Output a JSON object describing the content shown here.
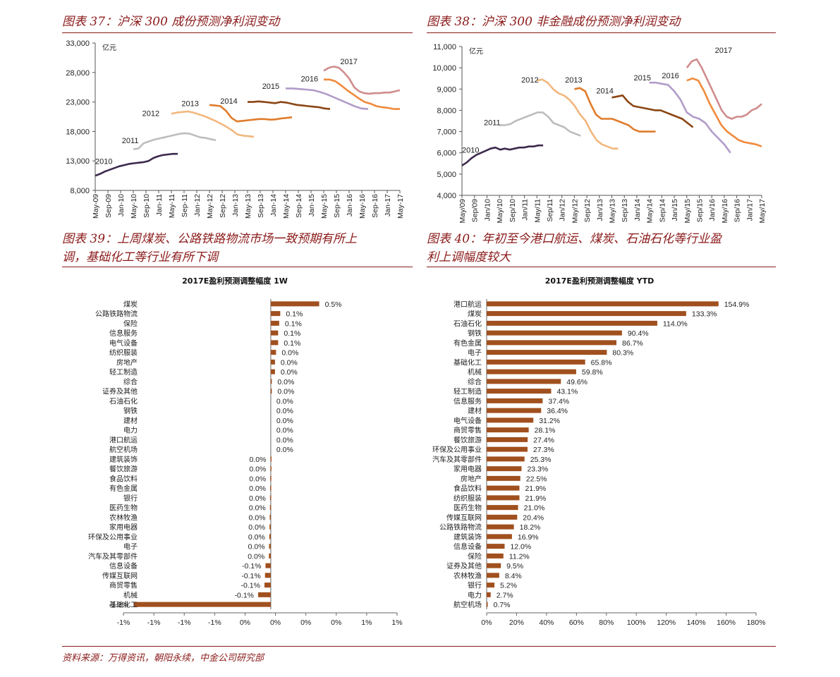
{
  "titles": {
    "c37": "图表 37：沪深 300 成份预测净利润变动",
    "c38": "图表 38：沪深 300 非金融成份预测净利润变动",
    "c39_l1": "图表 39：上周煤炭、公路铁路物流市场一致预期有所上",
    "c39_l2": "调，基础化工等行业有所下调",
    "c40_l1": "图表 40：年初至今港口航运、煤炭、石油石化等行业盈",
    "c40_l2": "利上调幅度较大"
  },
  "source": "资料来源：万得资讯，朝阳永续，中金公司研究部",
  "chart_data": [
    {
      "id": "c37",
      "type": "line",
      "yunit": "亿元",
      "ylim": [
        8000,
        33000
      ],
      "yticks": [
        "8,000",
        "13,000",
        "18,000",
        "23,000",
        "28,000",
        "33,000"
      ],
      "xticks": [
        "May-09",
        "Sep-09",
        "Jan-10",
        "May-10",
        "Sep-10",
        "Jan-11",
        "May-11",
        "Sep-11",
        "Jan-12",
        "May-12",
        "Sep-12",
        "Jan-13",
        "May-13",
        "Sep-13",
        "Jan-14",
        "May-14",
        "Sep-14",
        "Jan-15",
        "May-15",
        "Sep-15",
        "Jan-16",
        "May-16",
        "Sep-16",
        "Jan-17",
        "May-17"
      ],
      "series": [
        {
          "name": "2010",
          "color": "#3c2a4d",
          "start": 0,
          "pts": [
            10500,
            10800,
            11200,
            11500,
            11800,
            12100,
            12300,
            12500,
            12600,
            12700,
            12800,
            13000,
            13500,
            13800,
            14000,
            14100,
            14200,
            14200
          ]
        },
        {
          "name": "2011",
          "color": "#bdbdbd",
          "start": 6,
          "pts": [
            15000,
            15100,
            16000,
            16300,
            16600,
            16800,
            17000,
            17200,
            17400,
            17600,
            17700,
            17600,
            17300,
            17000,
            16900,
            16700,
            16500
          ]
        },
        {
          "name": "2012",
          "color": "#f2b77e",
          "start": 12,
          "pts": [
            21000,
            21200,
            21300,
            21400,
            21200,
            20900,
            20600,
            20200,
            19800,
            19300,
            18800,
            18200,
            17500,
            17300,
            17200,
            17100
          ]
        },
        {
          "name": "2013",
          "color": "#e07b2a",
          "start": 18,
          "pts": [
            22500,
            22400,
            22300,
            21500,
            20300,
            19700,
            19800,
            19900,
            20000,
            20100,
            20100,
            20000,
            20050,
            20200,
            20300,
            20400
          ]
        },
        {
          "name": "2014",
          "color": "#8b4513",
          "start": 24,
          "pts": [
            23000,
            23000,
            23100,
            23000,
            22900,
            22800,
            23000,
            22900,
            22700,
            22500,
            22400,
            22300,
            22200,
            22100,
            21900,
            21800
          ]
        },
        {
          "name": "2015",
          "color": "#b19cc9",
          "start": 30,
          "pts": [
            25300,
            25300,
            25200,
            25100,
            25000,
            24700,
            24300,
            23800,
            23300,
            22800,
            22300,
            21900,
            21800
          ]
        },
        {
          "name": "2016",
          "color": "#f08a3c",
          "start": 36,
          "pts": [
            26800,
            26800,
            26500,
            25800,
            25000,
            24300,
            23600,
            23000,
            22700,
            22300,
            22100,
            22000,
            21800,
            21800
          ]
        },
        {
          "name": "2017",
          "color": "#d08c8c",
          "start": 36,
          "pts": [
            28300,
            28800,
            29000,
            28800,
            28000,
            27000,
            25500,
            24800,
            24500,
            24400,
            24500,
            24500,
            24600,
            24600,
            24800,
            25000
          ]
        }
      ],
      "labels": [
        {
          "text": "2010",
          "x": 0,
          "y": 12500
        },
        {
          "text": "2011",
          "x": 4.2,
          "y": 16000
        },
        {
          "text": "2012",
          "x": 7.4,
          "y": 20600
        },
        {
          "text": "2013",
          "x": 13.6,
          "y": 22300
        },
        {
          "text": "2014",
          "x": 19.7,
          "y": 22700
        },
        {
          "text": "2015",
          "x": 26.3,
          "y": 25200
        },
        {
          "text": "2016",
          "x": 32.4,
          "y": 26500
        },
        {
          "text": "2017",
          "x": 38.6,
          "y": 29400
        }
      ],
      "npts": 49
    },
    {
      "id": "c38",
      "type": "line",
      "yunit": "亿元",
      "ylim": [
        4000,
        11000
      ],
      "yticks": [
        "4,000",
        "5,000",
        "6,000",
        "7,000",
        "8,000",
        "9,000",
        "10,000",
        "11,000"
      ],
      "xticks": [
        "May/09",
        "Sep/09",
        "Jan/10",
        "May/10",
        "Sep/10",
        "Jan/11",
        "May/11",
        "Sep/11",
        "Jan/12",
        "May/12",
        "Sep/12",
        "Jan/13",
        "May/13",
        "Sep/13",
        "Jan/14",
        "May/14",
        "Sep/14",
        "Jan/15",
        "May/15",
        "Sep/15",
        "Jan/16",
        "May/16",
        "Sep/16",
        "Jan/17",
        "May/17"
      ],
      "series": [
        {
          "name": "2010",
          "color": "#3c2a4d",
          "start": 0,
          "pts": [
            5400,
            5550,
            5750,
            5900,
            6000,
            6100,
            6200,
            6250,
            6150,
            6200,
            6150,
            6200,
            6250,
            6250,
            6300,
            6300,
            6350,
            6350
          ]
        },
        {
          "name": "2011",
          "color": "#bdbdbd",
          "start": 6,
          "pts": [
            7300,
            7300,
            7350,
            7500,
            7600,
            7700,
            7800,
            7900,
            7900,
            7700,
            7400,
            7300,
            7200,
            7000,
            6900,
            6800
          ]
        },
        {
          "name": "2012",
          "color": "#f2b77e",
          "start": 12,
          "pts": [
            9400,
            9450,
            9300,
            9000,
            8800,
            8700,
            8500,
            8200,
            7800,
            7500,
            7000,
            6600,
            6400,
            6300,
            6200,
            6200
          ]
        },
        {
          "name": "2013",
          "color": "#e07b2a",
          "start": 18,
          "pts": [
            9000,
            9050,
            8900,
            8300,
            7800,
            7600,
            7600,
            7600,
            7500,
            7400,
            7300,
            7100,
            7000,
            7000,
            7000,
            7000
          ]
        },
        {
          "name": "2014",
          "color": "#8b4513",
          "start": 24,
          "pts": [
            8600,
            8650,
            8700,
            8400,
            8200,
            8150,
            8100,
            8050,
            8000,
            8000,
            7900,
            7800,
            7700,
            7600,
            7400,
            7200
          ]
        },
        {
          "name": "2015",
          "color": "#b19cc9",
          "start": 30,
          "pts": [
            9300,
            9300,
            9250,
            9200,
            8900,
            8500,
            7900,
            7700,
            7600,
            7400,
            7000,
            6700,
            6400,
            6000
          ]
        },
        {
          "name": "2016",
          "color": "#f08a3c",
          "start": 36,
          "pts": [
            9400,
            9500,
            9400,
            8900,
            8300,
            7800,
            7300,
            7000,
            6800,
            6600,
            6500,
            6450,
            6400,
            6300
          ]
        },
        {
          "name": "2017",
          "color": "#d08c8c",
          "start": 36,
          "pts": [
            10000,
            10300,
            10400,
            10000,
            9500,
            9000,
            8500,
            8000,
            7700,
            7600,
            7700,
            7700,
            7800,
            8000,
            8100,
            8300
          ]
        }
      ],
      "labels": [
        {
          "text": "2010",
          "x": 0,
          "y": 6000
        },
        {
          "text": "2011",
          "x": 3.5,
          "y": 7300
        },
        {
          "text": "2012",
          "x": 9.5,
          "y": 9300
        },
        {
          "text": "2013",
          "x": 16.5,
          "y": 9300
        },
        {
          "text": "2014",
          "x": 21.5,
          "y": 8800
        },
        {
          "text": "2015",
          "x": 27.5,
          "y": 9400
        },
        {
          "text": "2016",
          "x": 32,
          "y": 9500
        },
        {
          "text": "2017",
          "x": 40.5,
          "y": 10700
        }
      ],
      "npts": 49
    },
    {
      "id": "c39",
      "type": "bar",
      "title": "2017E盈利预测调整幅度 1W",
      "xticks": [
        "-1%",
        "-1%",
        "-1%",
        "-1%",
        "0%",
        "0%",
        "0%",
        "0%",
        "1%",
        "1%"
      ],
      "xlim": [
        -1.4,
        1.2
      ],
      "categories": [
        "煤炭",
        "公路铁路物流",
        "保险",
        "信息服务",
        "电气设备",
        "纺织服装",
        "房地产",
        "轻工制造",
        "综合",
        "证券及其他",
        "石油石化",
        "钢铁",
        "建材",
        "电力",
        "港口航运",
        "航空机场",
        "建筑装饰",
        "餐饮旅游",
        "食品饮料",
        "有色金属",
        "银行",
        "医药生物",
        "农林牧渔",
        "家用电器",
        "环保及公用事业",
        "电子",
        "汽车及其零部件",
        "信息设备",
        "传媒互联网",
        "商贸零售",
        "机械",
        "基础化工"
      ],
      "values": [
        0.46,
        0.09,
        0.08,
        0.07,
        0.07,
        0.05,
        0.04,
        0.04,
        0.01,
        0.01,
        0.0,
        0.0,
        0.0,
        0.0,
        0.0,
        0.0,
        -0.003,
        -0.004,
        -0.005,
        -0.006,
        -0.007,
        -0.008,
        -0.01,
        -0.012,
        -0.014,
        -0.016,
        -0.018,
        -0.05,
        -0.055,
        -0.06,
        -0.12,
        -1.3
      ],
      "data_labels": [
        "0.5%",
        "0.1%",
        "0.1%",
        "0.1%",
        "0.1%",
        "0.0%",
        "0.0%",
        "0.0%",
        "0.0%",
        "0.0%",
        "0.0%",
        "0.0%",
        "0.0%",
        "0.0%",
        "0.0%",
        "0.0%",
        "0.0%",
        "0.0%",
        "0.0%",
        "0.0%",
        "0.0%",
        "0.0%",
        "0.0%",
        "0.0%",
        "0.0%",
        "0.0%",
        "0.0%",
        "-0.1%",
        "-0.1%",
        "-0.1%",
        "-0.1%",
        "-1.3%"
      ]
    },
    {
      "id": "c40",
      "type": "bar",
      "title": "2017E盈利预测调整幅度 YTD",
      "xticks": [
        "0%",
        "20%",
        "40%",
        "60%",
        "80%",
        "100%",
        "120%",
        "140%",
        "160%",
        "180%"
      ],
      "xlim": [
        0,
        180
      ],
      "categories": [
        "港口航运",
        "煤炭",
        "石油石化",
        "钢铁",
        "有色金属",
        "电子",
        "基础化工",
        "机械",
        "综合",
        "轻工制造",
        "信息服务",
        "建材",
        "电气设备",
        "商贸零售",
        "餐饮旅游",
        "环保及公用事业",
        "汽车及其零部件",
        "家用电器",
        "房地产",
        "食品饮料",
        "纺织服装",
        "医药生物",
        "传媒互联网",
        "公路铁路物流",
        "建筑装饰",
        "信息设备",
        "保险",
        "证券及其他",
        "农林牧渔",
        "银行",
        "电力",
        "航空机场"
      ],
      "values": [
        154.9,
        133.3,
        114.0,
        90.4,
        86.7,
        80.3,
        65.8,
        59.8,
        49.6,
        43.1,
        37.4,
        36.4,
        31.2,
        28.1,
        27.4,
        27.3,
        25.3,
        23.3,
        22.5,
        21.9,
        21.9,
        21.0,
        20.4,
        18.2,
        16.9,
        12.0,
        11.2,
        9.5,
        8.4,
        5.2,
        2.7,
        0.7
      ],
      "data_labels": [
        "154.9%",
        "133.3%",
        "114.0%",
        "90.4%",
        "86.7%",
        "80.3%",
        "65.8%",
        "59.8%",
        "49.6%",
        "43.1%",
        "37.4%",
        "36.4%",
        "31.2%",
        "28.1%",
        "27.4%",
        "27.3%",
        "25.3%",
        "23.3%",
        "22.5%",
        "21.9%",
        "21.9%",
        "21.0%",
        "20.4%",
        "18.2%",
        "16.9%",
        "12.0%",
        "11.2%",
        "9.5%",
        "8.4%",
        "5.2%",
        "2.7%",
        "0.7%"
      ]
    }
  ]
}
